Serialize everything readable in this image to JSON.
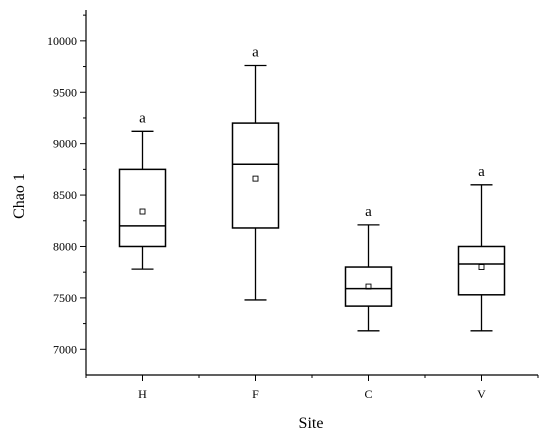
{
  "chart_data": {
    "type": "box",
    "title": "",
    "xlabel": "Site",
    "ylabel": "Chao 1",
    "ylim": [
      6750,
      10300
    ],
    "yticks": [
      7000,
      7500,
      8000,
      8500,
      9000,
      9500,
      10000
    ],
    "categories": [
      "H",
      "F",
      "C",
      "V"
    ],
    "boxes": [
      {
        "category": "H",
        "whisker_low": 7780,
        "q1": 8000,
        "median": 8200,
        "q3": 8750,
        "whisker_high": 9120,
        "mean": 8340,
        "label": "a"
      },
      {
        "category": "F",
        "whisker_low": 7480,
        "q1": 8180,
        "median": 8800,
        "q3": 9200,
        "whisker_high": 9760,
        "mean": 8660,
        "label": "a"
      },
      {
        "category": "C",
        "whisker_low": 7180,
        "q1": 7420,
        "median": 7590,
        "q3": 7800,
        "whisker_high": 8210,
        "mean": 7610,
        "label": "a"
      },
      {
        "category": "V",
        "whisker_low": 7180,
        "q1": 7530,
        "median": 7830,
        "q3": 8000,
        "whisker_high": 8600,
        "mean": 7800,
        "label": "a"
      }
    ],
    "grid": false,
    "legend": "none",
    "colors": {
      "stroke": "#000000",
      "background": "#ffffff"
    }
  }
}
